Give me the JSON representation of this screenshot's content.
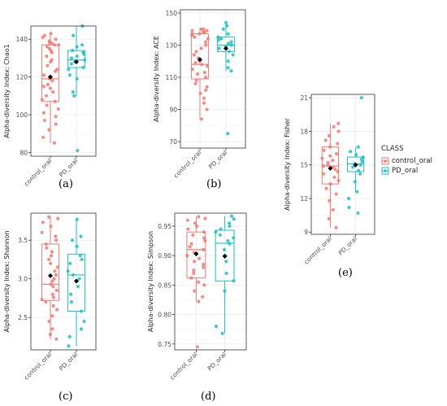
{
  "colors": {
    "control_oral": "#f07a72",
    "PD_oral": "#1fbfc3",
    "mean_marker": "#000000",
    "grid": "#ebebeb",
    "panel_border": "#333333"
  },
  "legend": {
    "title": "CLASS",
    "items": [
      "control_oral",
      "PD_oral"
    ]
  },
  "captions": [
    "(a)",
    "(b)",
    "(c)",
    "(d)",
    "(e)"
  ],
  "chart_data": [
    {
      "type": "box",
      "ylabel": "Alpha-diversity Index: Chao1",
      "categories": [
        "control_oral",
        "PD_oral"
      ],
      "ylim": [
        78,
        147
      ],
      "yticks": [
        80,
        100,
        120,
        140
      ],
      "grid": true,
      "boxes": [
        {
          "class": "control_oral",
          "min": 85,
          "q1": 107,
          "median": 119,
          "q3": 137,
          "max": 143,
          "mean": 120
        },
        {
          "class": "PD_oral",
          "min": 110,
          "q1": 125,
          "median": 129,
          "q3": 134,
          "max": 147,
          "mean": 128
        }
      ],
      "points": [
        [
          85,
          88,
          92,
          95,
          97,
          99,
          101,
          103,
          105,
          107,
          108,
          110,
          112,
          114,
          115,
          116,
          118,
          119,
          120,
          121,
          123,
          124,
          126,
          128,
          129,
          131,
          133,
          134,
          135,
          136,
          137,
          137,
          138,
          138,
          139,
          140,
          141,
          142,
          143
        ],
        [
          81,
          110,
          112,
          119,
          121,
          124,
          125,
          127,
          128,
          129,
          130,
          131,
          132,
          133,
          134,
          136,
          137,
          142,
          147
        ]
      ]
    },
    {
      "type": "box",
      "ylabel": "Alpha-diversity Index: ACE",
      "categories": [
        "control_oral",
        "PD_oral"
      ],
      "ylim": [
        66,
        152
      ],
      "yticks": [
        70,
        90,
        110,
        130,
        150
      ],
      "grid": true,
      "boxes": [
        {
          "class": "control_oral",
          "min": 84,
          "q1": 109,
          "median": 118,
          "q3": 137,
          "max": 140,
          "mean": 121
        },
        {
          "class": "PD_oral",
          "min": 114,
          "q1": 126,
          "median": 130,
          "q3": 135,
          "max": 144,
          "mean": 128
        }
      ],
      "points": [
        [
          84,
          90,
          94,
          97,
          100,
          102,
          104,
          106,
          108,
          110,
          112,
          113,
          115,
          117,
          118,
          119,
          120,
          122,
          124,
          126,
          128,
          130,
          132,
          134,
          135,
          136,
          137,
          137,
          138,
          138,
          139,
          139,
          140,
          140
        ],
        [
          75,
          114,
          116,
          120,
          124,
          126,
          128,
          129,
          130,
          131,
          132,
          133,
          134,
          135,
          137,
          140,
          142,
          144
        ]
      ]
    },
    {
      "type": "box",
      "ylabel": "Alpha-diversity Index: Shannon",
      "categories": [
        "control_oral",
        "PD_oral"
      ],
      "ylim": [
        2.08,
        3.85
      ],
      "yticks": [
        2.5,
        3.0,
        3.5
      ],
      "grid": true,
      "boxes": [
        {
          "class": "control_oral",
          "min": 2.22,
          "q1": 2.72,
          "median": 2.93,
          "q3": 3.45,
          "max": 3.8,
          "mean": 3.04
        },
        {
          "class": "PD_oral",
          "min": 2.13,
          "q1": 2.58,
          "median": 3.05,
          "q3": 3.32,
          "max": 3.77,
          "mean": 2.97
        }
      ],
      "points": [
        [
          2.22,
          2.28,
          2.35,
          2.45,
          2.52,
          2.6,
          2.65,
          2.7,
          2.73,
          2.76,
          2.8,
          2.85,
          2.9,
          2.93,
          2.97,
          3.0,
          3.05,
          3.1,
          3.15,
          3.2,
          3.25,
          3.3,
          3.35,
          3.4,
          3.45,
          3.5,
          3.55,
          3.6,
          3.68,
          3.73,
          3.78,
          3.8
        ],
        [
          2.13,
          2.25,
          2.35,
          2.45,
          2.58,
          2.7,
          2.8,
          2.9,
          3.0,
          3.05,
          3.1,
          3.2,
          3.25,
          3.3,
          3.42,
          3.5,
          3.55,
          3.77
        ]
      ]
    },
    {
      "type": "box",
      "ylabel": "Alpha-diversity Index: Simpson",
      "categories": [
        "control_oral",
        "PD_oral"
      ],
      "ylim": [
        0.74,
        0.972
      ],
      "yticks": [
        0.75,
        0.8,
        0.85,
        0.9,
        0.95
      ],
      "grid": true,
      "boxes": [
        {
          "class": "control_oral",
          "min": 0.822,
          "q1": 0.862,
          "median": 0.91,
          "q3": 0.94,
          "max": 0.966,
          "mean": 0.903
        },
        {
          "class": "PD_oral",
          "min": 0.768,
          "q1": 0.857,
          "median": 0.921,
          "q3": 0.943,
          "max": 0.967,
          "mean": 0.899
        }
      ],
      "points": [
        [
          0.745,
          0.822,
          0.83,
          0.84,
          0.85,
          0.855,
          0.862,
          0.87,
          0.875,
          0.88,
          0.885,
          0.89,
          0.895,
          0.9,
          0.905,
          0.91,
          0.915,
          0.92,
          0.925,
          0.93,
          0.935,
          0.94,
          0.945,
          0.95,
          0.955,
          0.96,
          0.963,
          0.966
        ],
        [
          0.768,
          0.78,
          0.84,
          0.857,
          0.87,
          0.89,
          0.9,
          0.91,
          0.92,
          0.925,
          0.93,
          0.935,
          0.94,
          0.945,
          0.95,
          0.955,
          0.962,
          0.967
        ]
      ]
    },
    {
      "type": "box",
      "ylabel": "Alpha-diversity Index: Fisher",
      "categories": [
        "control_oral",
        "PD_oral"
      ],
      "ylim": [
        8.8,
        21.3
      ],
      "yticks": [
        9,
        12,
        15,
        18,
        21
      ],
      "grid": true,
      "boxes": [
        {
          "class": "control_oral",
          "min": 9.4,
          "q1": 13.3,
          "median": 14.9,
          "q3": 16.6,
          "max": 18.7,
          "mean": 14.7
        },
        {
          "class": "PD_oral",
          "min": 12.6,
          "q1": 14.4,
          "median": 15.1,
          "q3": 15.7,
          "max": 16.6,
          "mean": 15.0
        }
      ],
      "points": [
        [
          9.4,
          10.2,
          11.0,
          11.8,
          12.4,
          12.9,
          13.3,
          13.6,
          13.9,
          14.2,
          14.4,
          14.6,
          14.8,
          14.9,
          15.0,
          15.2,
          15.4,
          15.6,
          15.8,
          16.0,
          16.3,
          16.6,
          16.9,
          17.2,
          17.6,
          18.0,
          18.4,
          18.7
        ],
        [
          10.7,
          11.2,
          12.0,
          12.6,
          13.5,
          14.2,
          14.5,
          14.8,
          15.0,
          15.1,
          15.3,
          15.5,
          15.7,
          15.9,
          16.2,
          16.6,
          21.0
        ]
      ]
    }
  ]
}
